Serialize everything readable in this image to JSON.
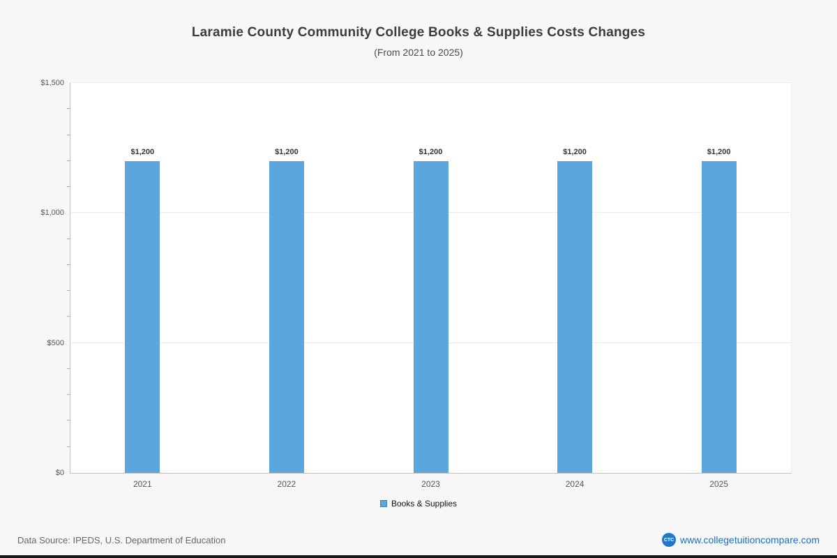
{
  "chart_data": {
    "type": "bar",
    "title": "Laramie County Community College Books & Supplies Costs Changes",
    "subtitle": "(From 2021 to 2025)",
    "categories": [
      "2021",
      "2022",
      "2023",
      "2024",
      "2025"
    ],
    "values": [
      1200,
      1200,
      1200,
      1200,
      1200
    ],
    "value_labels": [
      "$1,200",
      "$1,200",
      "$1,200",
      "$1,200",
      "$1,200"
    ],
    "series": [
      {
        "name": "Books & Supplies",
        "values": [
          1200,
          1200,
          1200,
          1200,
          1200
        ]
      }
    ],
    "xlabel": "",
    "ylabel": "",
    "ylim": [
      0,
      1500
    ],
    "y_ticks": [
      {
        "value": 0,
        "label": "$0"
      },
      {
        "value": 500,
        "label": "$500"
      },
      {
        "value": 1000,
        "label": "$1,000"
      },
      {
        "value": 1500,
        "label": "$1,500"
      }
    ],
    "grid": true,
    "legend_position": "bottom",
    "bar_color": "#5ba7dd"
  },
  "legend": {
    "label": "Books & Supplies"
  },
  "footer": {
    "source": "Data Source: IPEDS, U.S. Department of Education",
    "logo_text": "CTC",
    "url": "www.collegetuitioncompare.com"
  }
}
